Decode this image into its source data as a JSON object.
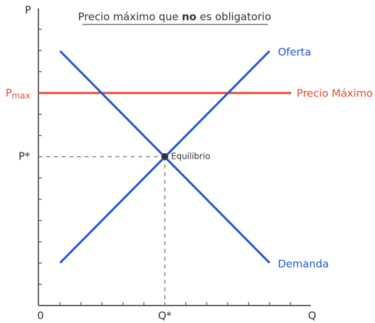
{
  "title": {
    "before": "Precio máximo que ",
    "bold": "no",
    "after": " es obligatorio"
  },
  "axes": {
    "y": "P",
    "x": "Q",
    "origin": "0"
  },
  "pmax": {
    "main": "P",
    "sub": "max"
  },
  "labels": {
    "p_star": "P*",
    "q_star": "Q*",
    "supply": "Oferta",
    "demand": "Demanda",
    "price_ceiling": "Precio Máximo",
    "equilibrium": "Equilibrio"
  }
}
